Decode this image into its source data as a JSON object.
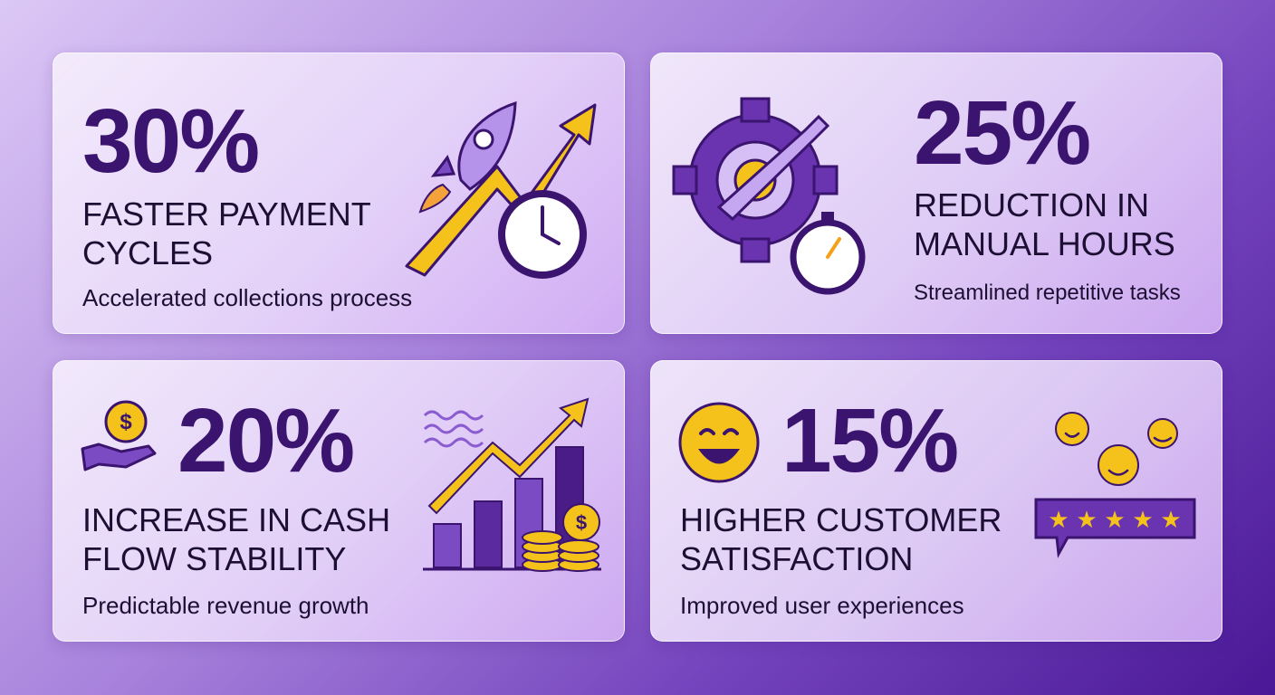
{
  "cards": [
    {
      "stat": "30%",
      "headline": [
        "FASTER PAYMENT",
        "CYCLES"
      ],
      "description": "Accelerated collections process"
    },
    {
      "stat": "25%",
      "headline": [
        "REDUCTION IN",
        "MANUAL HOURS"
      ],
      "description": "Streamlined repetitive tasks"
    },
    {
      "stat": "20%",
      "headline": [
        "INCREASE IN CASH",
        "FLOW STABILITY"
      ],
      "description": "Predictable revenue growth"
    },
    {
      "stat": "15%",
      "headline": [
        "HIGHER CUSTOMER",
        "SATISFACTION"
      ],
      "description": "Improved user experiences"
    }
  ]
}
